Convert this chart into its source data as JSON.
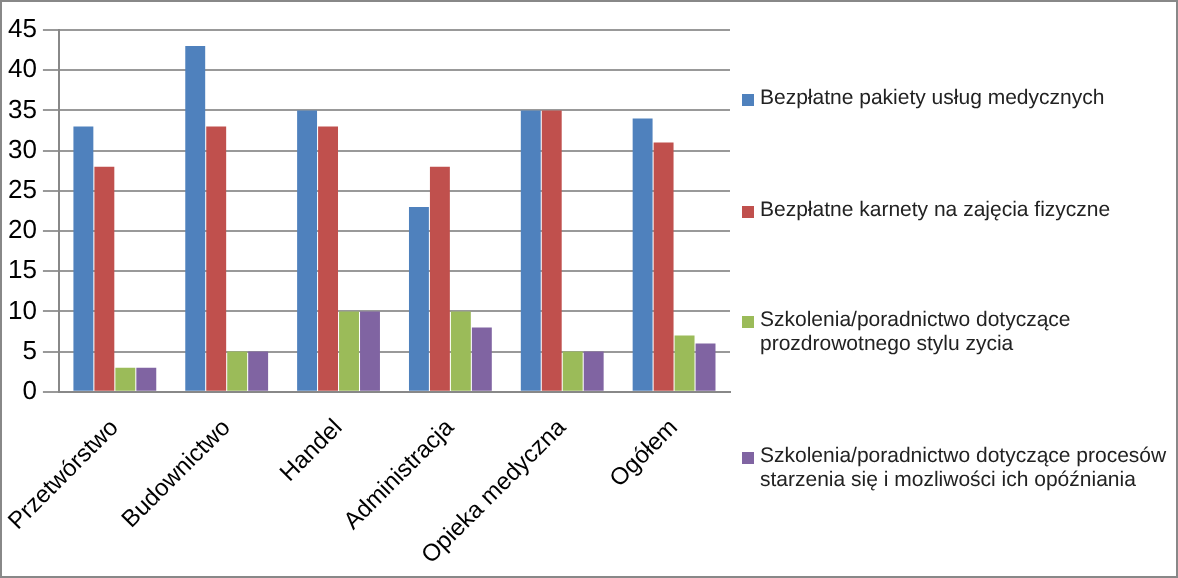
{
  "chart_data": {
    "type": "bar",
    "categories": [
      "Przetwórstwo",
      "Budownictwo",
      "Handel",
      "Administracja",
      "Opieka medyczna",
      "Ogółem"
    ],
    "series": [
      {
        "name": "Bezpłatne pakiety usług medycznych",
        "color": "#4f81bd",
        "values": [
          33,
          43,
          35,
          23,
          35,
          34
        ]
      },
      {
        "name": "Bezpłatne karnety na zajęcia fizyczne",
        "color": "#c0504d",
        "values": [
          28,
          33,
          33,
          28,
          35,
          31
        ]
      },
      {
        "name": "Szkolenia/poradnictwo dotyczące prozdrowotnego stylu zycia",
        "color": "#9bbb59",
        "values": [
          3,
          5,
          10,
          10,
          5,
          7
        ]
      },
      {
        "name": "Szkolenia/poradnictwo dotyczące procesów starzenia się i mozliwości ich opóźniania",
        "color": "#8064a2",
        "values": [
          3,
          5,
          10,
          8,
          5,
          6
        ]
      }
    ],
    "ylim": [
      0,
      45
    ],
    "yticks": [
      0,
      5,
      10,
      15,
      20,
      25,
      30,
      35,
      40,
      45
    ],
    "grid": "y",
    "legend": "right"
  }
}
